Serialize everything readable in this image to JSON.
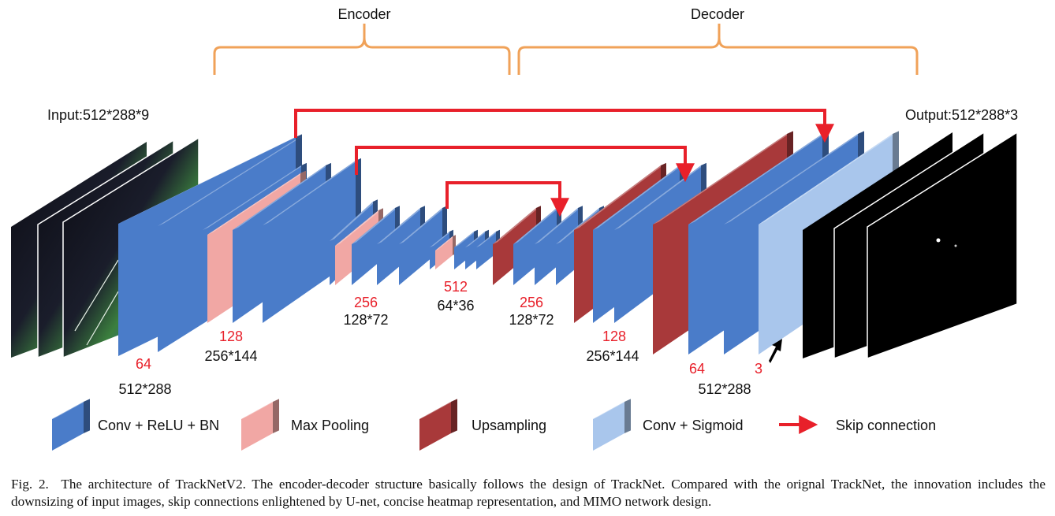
{
  "diagram": {
    "encoder_label": "Encoder",
    "decoder_label": "Decoder",
    "input_label": "Input:512*288*9",
    "output_label": "Output:512*288*3",
    "channels": {
      "c64_in": "64",
      "c128_in": "128",
      "c256_in": "256",
      "c512": "512",
      "c256_out": "256",
      "c128_out": "128",
      "c64_out": "64",
      "c3_out": "3"
    },
    "sizes": {
      "s512_in": "512*288",
      "s256_in": "256*144",
      "s128_in": "128*72",
      "s64": "64*36",
      "s128_out": "128*72",
      "s256_out": "256*144",
      "s512_out": "512*288"
    },
    "legend": {
      "conv": "Conv + ReLU + BN",
      "pool": "Max Pooling",
      "upsample": "Upsampling",
      "sigmoid": "Conv + Sigmoid",
      "skip": "Skip connection"
    },
    "colors": {
      "conv": "#4a7cc9",
      "pool": "#f1a7a4",
      "upsample": "#a8393a",
      "sigmoid": "#a9c6ec",
      "skip": "#e8202a",
      "brace": "#f0a259"
    }
  },
  "caption": {
    "prefix": "Fig. 2.",
    "text": "The architecture of TrackNetV2. The encoder-decoder structure basically follows the design of TrackNet. Compared with the orignal TrackNet, the innovation includes the downsizing of input images, skip connections enlightened by U-net, concise heatmap representation, and MIMO network design."
  }
}
